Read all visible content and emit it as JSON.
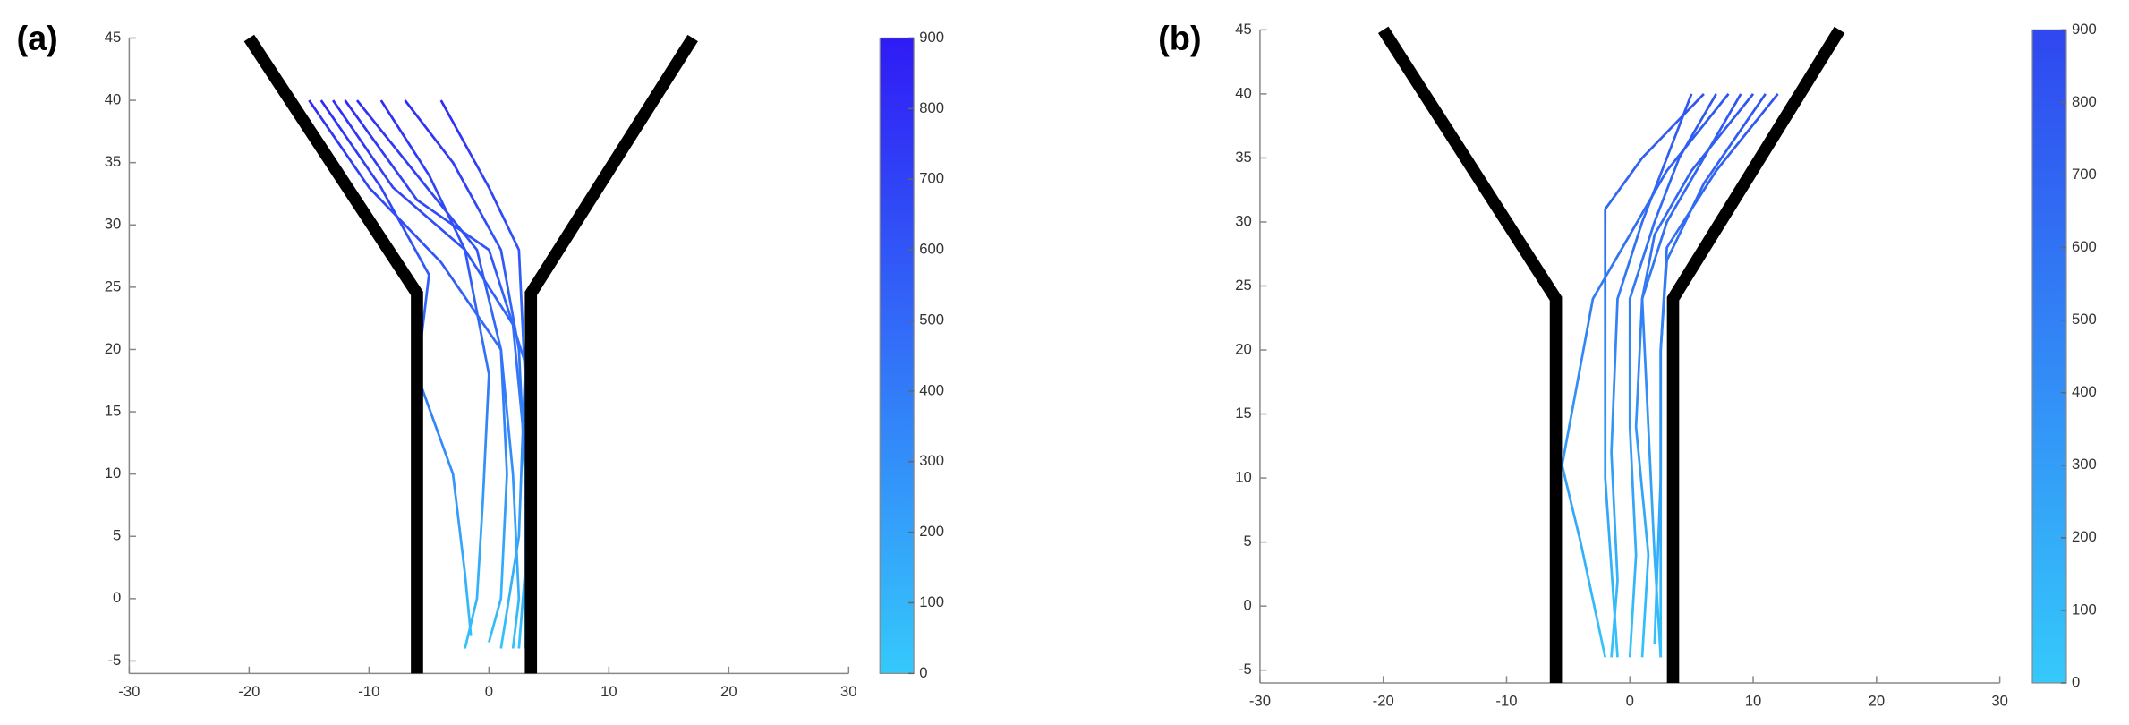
{
  "chart_data": [
    {
      "type": "line",
      "label": "(a)",
      "xlim": [
        -30,
        30
      ],
      "xticks": [
        -30,
        -20,
        -10,
        0,
        10,
        20,
        30
      ],
      "ylim": [
        -6,
        45
      ],
      "yticks": [
        -5,
        0,
        5,
        10,
        15,
        20,
        25,
        30,
        35,
        40,
        45
      ],
      "walls": [
        {
          "x": [
            -20,
            -6,
            -6
          ],
          "values": [
            45,
            24.5,
            -6
          ]
        },
        {
          "x": [
            17,
            3.5,
            3.5
          ],
          "values": [
            45,
            24.5,
            -6
          ]
        }
      ],
      "wall_color": "#000000",
      "series": [
        {
          "x": [
            -15,
            -10,
            -4,
            1,
            2,
            2.5,
            2
          ],
          "values": [
            40,
            33,
            27,
            20,
            10,
            0,
            -4
          ]
        },
        {
          "x": [
            -13,
            -8,
            -2,
            2,
            3,
            3,
            2.5
          ],
          "values": [
            40,
            33,
            28,
            22,
            12,
            2,
            -4
          ]
        },
        {
          "x": [
            -11,
            -6,
            -1,
            1,
            1.5,
            1,
            0
          ],
          "values": [
            40,
            34,
            28,
            20,
            10,
            0,
            -3.5
          ]
        },
        {
          "x": [
            -9,
            -5,
            -2,
            0,
            -0.5,
            -1,
            -2
          ],
          "values": [
            40,
            34,
            28,
            18,
            8,
            0,
            -4
          ]
        },
        {
          "x": [
            -7,
            -3,
            1,
            2.5,
            3,
            3,
            3
          ],
          "values": [
            40,
            35,
            28,
            20,
            10,
            0,
            -4
          ]
        },
        {
          "x": [
            -4,
            0,
            2.5,
            3,
            2.5,
            1
          ],
          "values": [
            40,
            33,
            28,
            18,
            5,
            -4
          ]
        },
        {
          "x": [
            -14,
            -9,
            -5,
            -6,
            -3,
            -2,
            -1.5
          ],
          "values": [
            40,
            33,
            26,
            18,
            10,
            2,
            -3
          ]
        },
        {
          "x": [
            -12,
            -6,
            0,
            3,
            3
          ],
          "values": [
            40,
            32,
            28,
            19,
            -4
          ]
        }
      ],
      "colorbar": {
        "lim": [
          0,
          900
        ],
        "ticks": [
          0,
          100,
          200,
          300,
          400,
          500,
          600,
          700,
          800,
          900
        ],
        "colors": [
          "#35c9fb",
          "#2f1bf5"
        ]
      }
    },
    {
      "type": "line",
      "label": "(b)",
      "xlim": [
        -30,
        30
      ],
      "xticks": [
        -30,
        -20,
        -10,
        0,
        10,
        20,
        30
      ],
      "ylim": [
        -6,
        45
      ],
      "yticks": [
        -5,
        0,
        5,
        10,
        15,
        20,
        25,
        30,
        35,
        40,
        45
      ],
      "walls": [
        {
          "x": [
            -20,
            -6,
            -6
          ],
          "values": [
            45,
            24,
            -6
          ]
        },
        {
          "x": [
            17,
            3.5,
            3.5
          ],
          "values": [
            45,
            24,
            -6
          ]
        }
      ],
      "wall_color": "#000000",
      "series": [
        {
          "x": [
            5,
            3,
            1,
            -1,
            -1.5,
            -1,
            -1.5
          ],
          "values": [
            40,
            35,
            30,
            24,
            12,
            2,
            -4
          ]
        },
        {
          "x": [
            7,
            4,
            2,
            0,
            0,
            0.5,
            0
          ],
          "values": [
            40,
            35,
            30,
            24,
            14,
            4,
            -4
          ]
        },
        {
          "x": [
            9,
            6,
            3,
            1,
            1.5,
            2,
            2.5
          ],
          "values": [
            40,
            35,
            30,
            24,
            14,
            4,
            -4
          ]
        },
        {
          "x": [
            11,
            6,
            3,
            2.5,
            2.5,
            2.5
          ],
          "values": [
            40,
            33,
            27,
            20,
            5,
            -4
          ]
        },
        {
          "x": [
            6,
            1,
            -2,
            -2,
            -2,
            -1
          ],
          "values": [
            40,
            35,
            31,
            24,
            10,
            -4
          ]
        },
        {
          "x": [
            8,
            3,
            0,
            -3,
            -5.5,
            -4,
            -2
          ],
          "values": [
            40,
            34,
            29,
            24,
            11,
            5,
            -4
          ]
        },
        {
          "x": [
            10,
            5,
            2,
            1,
            0.5,
            1.5,
            1
          ],
          "values": [
            40,
            34,
            29,
            24,
            14,
            4,
            -4
          ]
        },
        {
          "x": [
            12,
            7,
            3,
            2.5,
            2.5,
            2
          ],
          "values": [
            40,
            34,
            28,
            20,
            10,
            -3
          ]
        }
      ],
      "colorbar": {
        "lim": [
          0,
          900
        ],
        "ticks": [
          0,
          100,
          200,
          300,
          400,
          500,
          600,
          700,
          800,
          900
        ],
        "colors": [
          "#35c9fb",
          "#2f47f0"
        ]
      }
    }
  ]
}
